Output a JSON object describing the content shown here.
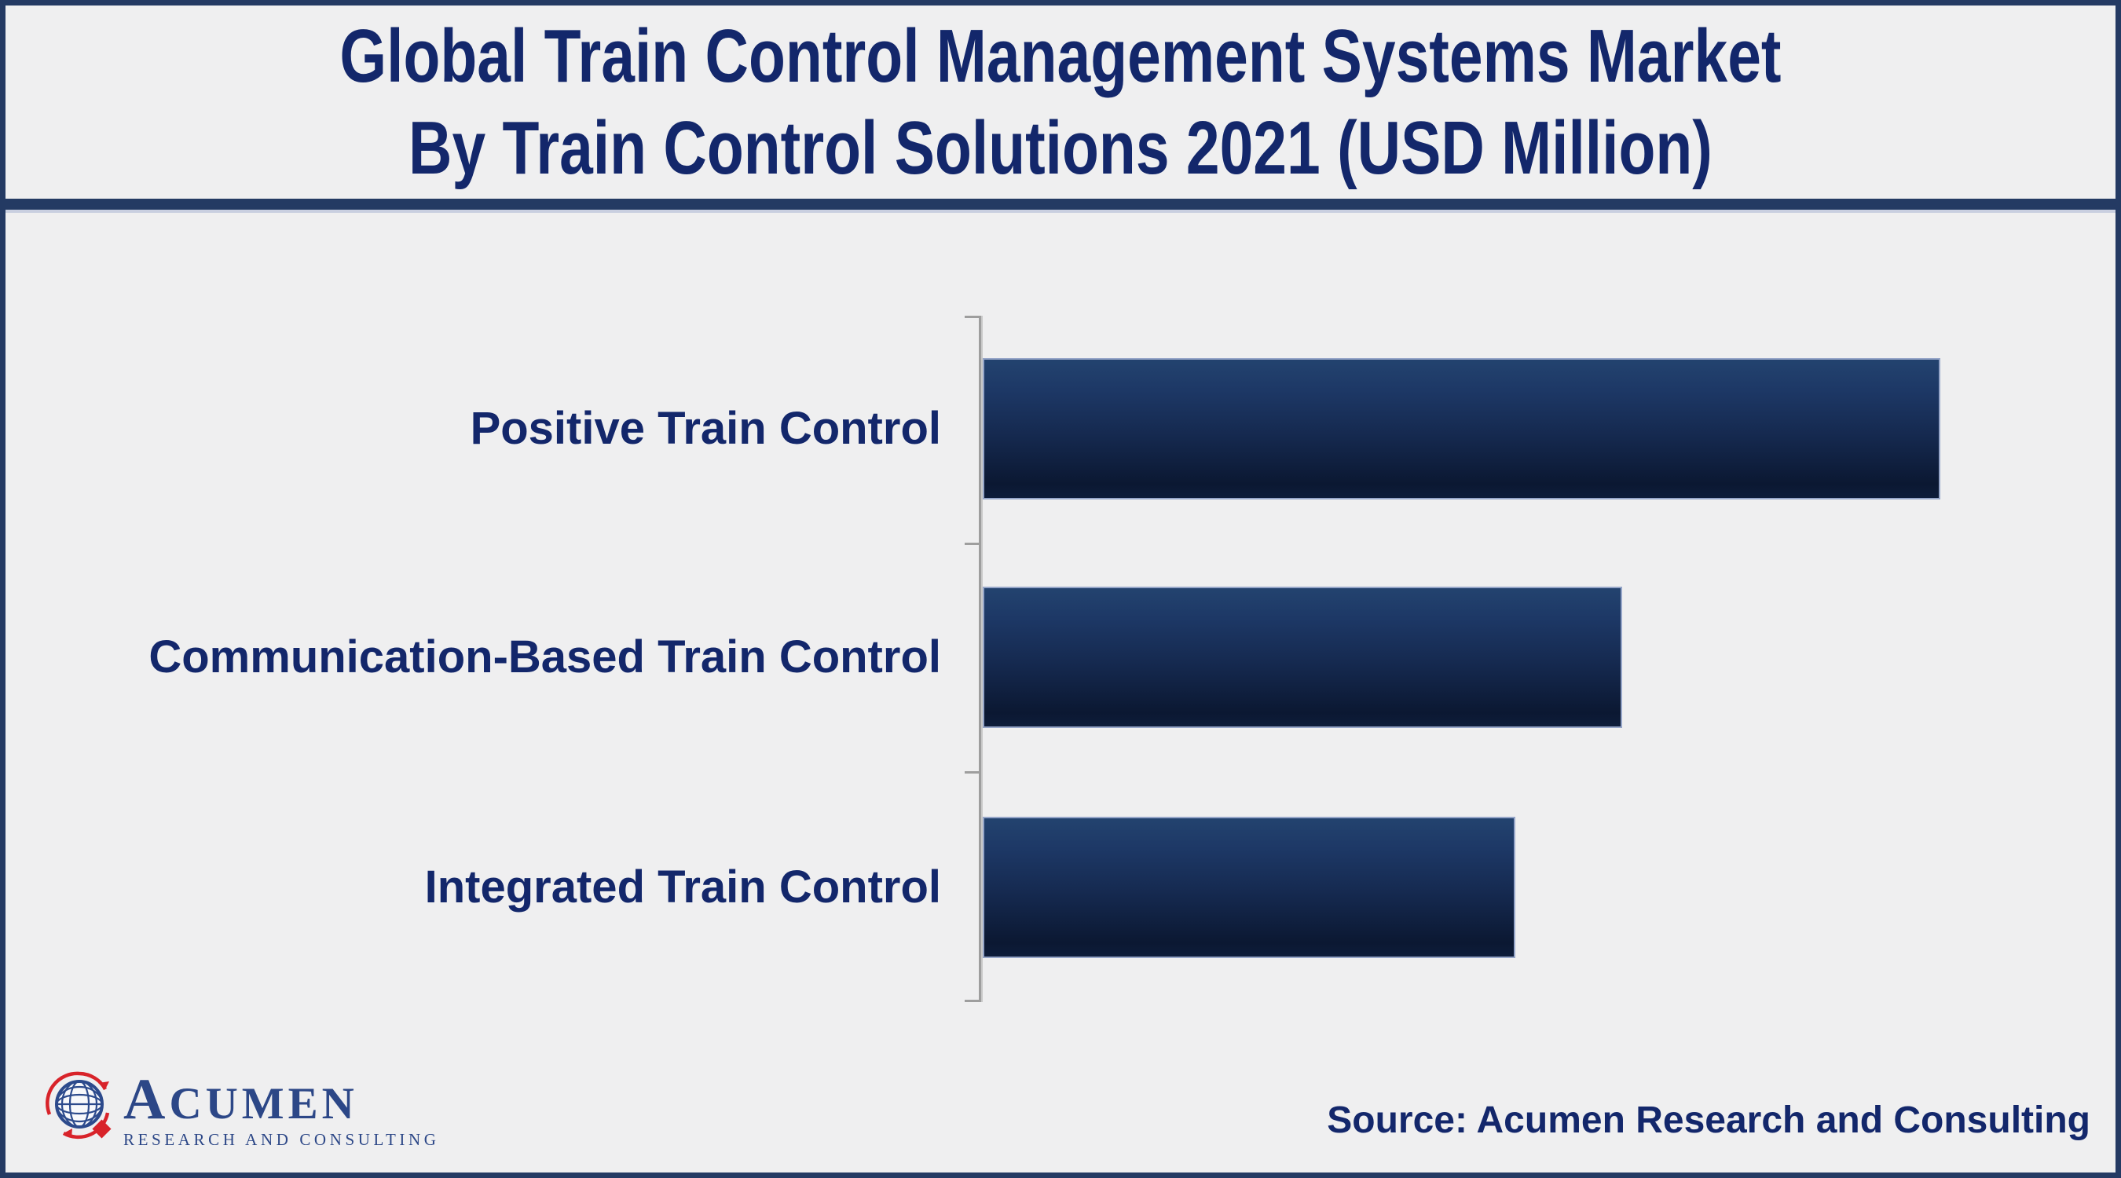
{
  "header": {
    "title_line1": "Global Train Control Management Systems Market",
    "title_line2": "By Train Control Solutions 2021 (USD Million)"
  },
  "chart_data": {
    "type": "bar",
    "orientation": "horizontal",
    "title": "Global Train Control Management Systems Market By Train Control Solutions 2021 (USD Million)",
    "year": "2021",
    "unit": "USD Million",
    "categories": [
      "Positive Train Control",
      "Communication-Based Train Control",
      "Integrated Train Control"
    ],
    "values_relative_pct": [
      100,
      66.7,
      55.5
    ],
    "data_labels_shown": false,
    "value_axis_shown": false,
    "grid": false,
    "legend_position": "none",
    "bar_gradient_top": "#23436f",
    "bar_gradient_bottom": "#0b1832",
    "bar_edge_color": "#95a5c8"
  },
  "footer": {
    "source_text": "Source: Acumen Research and Consulting",
    "logo_name_cap": "A",
    "logo_name_rest": "CUMEN",
    "logo_tagline": "RESEARCH AND CONSULTING"
  },
  "colors": {
    "background": "#efeff0",
    "frame_navy": "#243a63",
    "text_navy": "#13276b",
    "axis_gray": "#9e9e9e",
    "logo_blue": "#2c4787",
    "logo_red": "#d8232a"
  }
}
